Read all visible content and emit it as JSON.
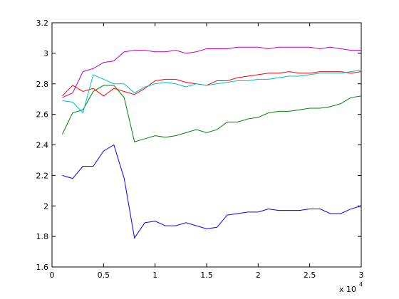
{
  "chart_data": {
    "type": "line",
    "x": [
      0.1,
      0.2,
      0.3,
      0.4,
      0.5,
      0.6,
      0.7,
      0.8,
      0.9,
      1.0,
      1.1,
      1.2,
      1.3,
      1.4,
      1.5,
      1.6,
      1.7,
      1.8,
      1.9,
      2.0,
      2.1,
      2.2,
      2.3,
      2.4,
      2.5,
      2.6,
      2.7,
      2.8,
      2.9,
      3.0
    ],
    "series": [
      {
        "color": "#0000ff",
        "values": [
          2.2,
          2.18,
          2.26,
          2.26,
          2.36,
          2.4,
          2.18,
          1.79,
          1.89,
          1.9,
          1.87,
          1.87,
          1.89,
          1.87,
          1.85,
          1.86,
          1.94,
          1.95,
          1.96,
          1.96,
          1.98,
          1.97,
          1.97,
          1.97,
          1.98,
          1.98,
          1.95,
          1.95,
          1.98,
          2.0
        ]
      },
      {
        "color": "#008000",
        "values": [
          2.47,
          2.61,
          2.63,
          2.75,
          2.79,
          2.79,
          2.71,
          2.42,
          2.44,
          2.46,
          2.45,
          2.46,
          2.48,
          2.5,
          2.48,
          2.5,
          2.55,
          2.55,
          2.57,
          2.58,
          2.61,
          2.62,
          2.62,
          2.63,
          2.64,
          2.64,
          2.65,
          2.67,
          2.71,
          2.72
        ]
      },
      {
        "color": "#ff0000",
        "values": [
          2.72,
          2.79,
          2.75,
          2.77,
          2.72,
          2.77,
          2.75,
          2.73,
          2.77,
          2.82,
          2.83,
          2.83,
          2.81,
          2.8,
          2.79,
          2.82,
          2.82,
          2.84,
          2.85,
          2.86,
          2.87,
          2.87,
          2.88,
          2.87,
          2.87,
          2.88,
          2.88,
          2.88,
          2.87,
          2.88
        ]
      },
      {
        "color": "#00bfbf",
        "values": [
          2.69,
          2.68,
          2.61,
          2.86,
          2.83,
          2.8,
          2.8,
          2.74,
          2.78,
          2.8,
          2.81,
          2.8,
          2.78,
          2.8,
          2.79,
          2.8,
          2.81,
          2.82,
          2.82,
          2.83,
          2.83,
          2.84,
          2.85,
          2.85,
          2.86,
          2.87,
          2.87,
          2.87,
          2.88,
          2.89
        ]
      },
      {
        "color": "#bf00bf",
        "values": [
          2.71,
          2.74,
          2.88,
          2.9,
          2.94,
          2.95,
          3.01,
          3.02,
          3.02,
          3.01,
          3.01,
          3.02,
          3.0,
          3.01,
          3.03,
          3.03,
          3.03,
          3.04,
          3.04,
          3.04,
          3.03,
          3.04,
          3.04,
          3.04,
          3.04,
          3.03,
          3.04,
          3.03,
          3.02,
          3.02
        ]
      }
    ],
    "xlim": [
      0,
      3
    ],
    "xticks": [
      0,
      0.5,
      1,
      1.5,
      2,
      2.5,
      3
    ],
    "ylim": [
      1.6,
      3.2
    ],
    "yticks": [
      1.6,
      1.8,
      2,
      2.2,
      2.4,
      2.6,
      2.8,
      3,
      3.2
    ],
    "x_multiplier": {
      "base": "x 10",
      "exponent": "4"
    }
  }
}
